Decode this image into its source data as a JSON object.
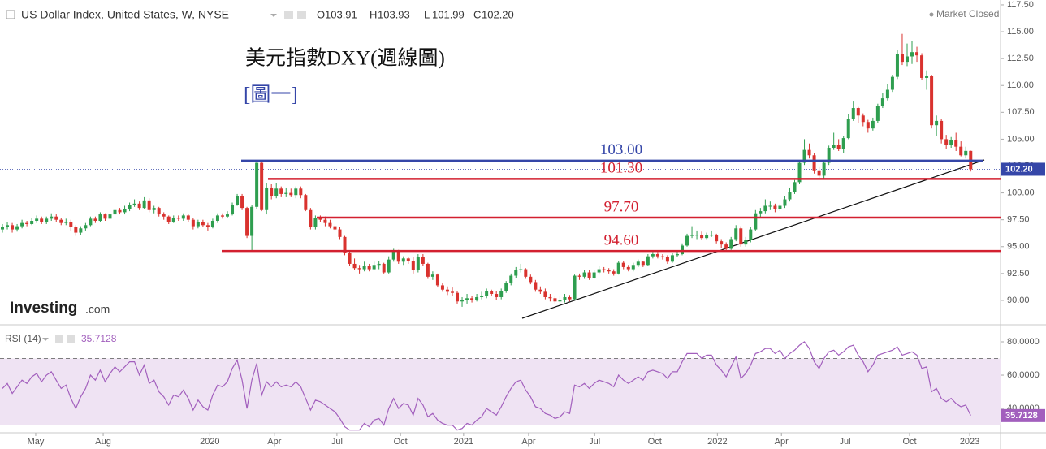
{
  "header": {
    "annotation_title": "美元指數DXY(週線圖)",
    "annotation_figure": "[圖一]",
    "logo_main": "Investing",
    "logo_suffix": ".com"
  },
  "chart_data": [
    {
      "type": "candlestick",
      "title": "US Dollar Index, United States, W, NYSE",
      "status": "Market Closed",
      "up_color": "#2e9e4f",
      "down_color": "#d9322e",
      "grid": false,
      "ohlc_legend": {
        "keys": [
          "O",
          "H",
          "L",
          "C"
        ],
        "values": [
          103.91,
          103.93,
          101.99,
          102.2
        ],
        "value_labels": [
          "103.91",
          "103.93",
          "101.99",
          "102.20"
        ]
      },
      "levels": [
        {
          "value": 103,
          "label": "103.00",
          "color": "#3546a8"
        },
        {
          "value": 101.3,
          "label": "101.30",
          "color": "#d32030"
        },
        {
          "value": 97.7,
          "label": "97.70",
          "color": "#d32030"
        },
        {
          "value": 94.6,
          "label": "94.60",
          "color": "#d32030"
        }
      ],
      "xlim": [
        -0.5,
        204.1
      ],
      "ylim": [
        87.73,
        117.95
      ],
      "yticks": [
        {
          "value": 90,
          "label": "90.00"
        },
        {
          "value": 92.5,
          "label": "92.50"
        },
        {
          "value": 95,
          "label": "95.00"
        },
        {
          "value": 97.5,
          "label": "97.50"
        },
        {
          "value": 100,
          "label": "100.00"
        },
        {
          "value": 102.5,
          "label": "102.50"
        },
        {
          "value": 105,
          "label": "105.00"
        },
        {
          "value": 107.5,
          "label": "107.50"
        },
        {
          "value": 110,
          "label": "110.00"
        },
        {
          "value": 112.5,
          "label": "112.50"
        },
        {
          "value": 115,
          "label": "115.00"
        },
        {
          "value": 117.5,
          "label": "117.50"
        }
      ],
      "open": [
        96.6,
        96.8,
        97.0,
        96.6,
        96.9,
        97.2,
        97.1,
        97.4,
        97.6,
        97.3,
        97.6,
        97.8,
        97.5,
        97.2,
        97.3,
        96.8,
        96.3,
        96.7,
        97.0,
        97.6,
        97.4,
        98.0,
        97.6,
        98.0,
        98.4,
        98.2,
        98.5,
        98.9,
        99.0,
        98.6,
        99.3,
        98.4,
        98.6,
        98.0,
        97.8,
        97.3,
        97.7,
        97.6,
        97.9,
        97.5,
        96.9,
        97.3,
        97.0,
        96.8,
        97.4,
        97.9,
        97.8,
        98.0,
        98.9,
        99.7,
        98.6,
        96.0,
        98.7,
        102.8,
        98.4,
        100.5,
        99.7,
        100.4,
        99.9,
        100.0,
        99.8,
        100.4,
        99.8,
        98.4,
        96.8,
        97.7,
        97.5,
        97.2,
        96.9,
        96.6,
        95.9,
        94.4,
        93.4,
        93.0,
        92.9,
        93.2,
        92.9,
        93.3,
        93.4,
        92.6,
        93.8,
        94.6,
        93.6,
        93.9,
        93.7,
        92.8,
        94.0,
        93.4,
        92.2,
        92.4,
        91.4,
        91.0,
        90.8,
        90.7,
        89.9,
        90.0,
        90.2,
        90.0,
        90.3,
        90.4,
        90.9,
        90.6,
        90.3,
        90.9,
        91.6,
        92.3,
        92.8,
        92.9,
        92.2,
        91.7,
        91.0,
        90.8,
        90.3,
        90.2,
        89.9,
        90.0,
        90.3,
        90.1,
        92.3,
        92.2,
        92.6,
        92.1,
        92.6,
        92.9,
        92.8,
        92.7,
        92.5,
        93.5,
        93.1,
        92.9,
        93.3,
        93.6,
        93.3,
        94.1,
        94.3,
        94.1,
        94.0,
        93.6,
        94.2,
        94.3,
        95.1,
        96.0,
        96.1,
        96.1,
        95.8,
        96.1,
        96.1,
        95.5,
        95.2,
        94.8,
        95.7,
        96.7,
        95.2,
        95.6,
        96.6,
        98.1,
        98.3,
        98.8,
        98.8,
        98.5,
        98.8,
        99.4,
        100.1,
        101.0,
        102.8,
        104.0,
        103.5,
        102.1,
        101.6,
        102.8,
        104.2,
        104.5,
        104.1,
        105.1,
        106.9,
        107.9,
        107.2,
        106.6,
        106.0,
        106.7,
        108.1,
        108.8,
        109.6,
        110.8,
        112.9,
        112.2,
        112.7,
        113.1,
        112.8,
        110.7,
        110.9,
        106.3,
        106.7,
        105.0,
        104.5,
        104.9,
        104.3,
        103.5,
        103.91
      ],
      "high": [
        97.1,
        97.3,
        97.2,
        97.1,
        97.5,
        97.4,
        97.7,
        97.9,
        97.8,
        97.8,
        98.1,
        98.0,
        97.7,
        97.6,
        97.5,
        97.0,
        96.9,
        97.2,
        97.8,
        97.8,
        98.2,
        98.1,
        98.2,
        98.6,
        98.6,
        98.8,
        99.1,
        99.4,
        99.2,
        99.6,
        99.5,
        98.8,
        98.7,
        98.2,
        97.9,
        97.9,
        97.9,
        98.1,
        98.0,
        97.7,
        97.5,
        97.5,
        97.2,
        97.6,
        98.1,
        98.1,
        98.3,
        99.1,
        99.9,
        99.9,
        98.7,
        98.9,
        103.0,
        102.9,
        100.9,
        100.8,
        100.9,
        100.6,
        100.5,
        100.4,
        100.6,
        100.6,
        99.9,
        98.6,
        97.9,
        97.9,
        97.8,
        97.5,
        97.1,
        96.8,
        96.0,
        94.6,
        93.9,
        93.3,
        93.6,
        93.4,
        93.6,
        93.7,
        93.5,
        94.1,
        94.8,
        94.7,
        94.1,
        94.0,
        94.0,
        94.3,
        94.3,
        93.5,
        92.7,
        92.5,
        91.6,
        91.3,
        91.2,
        90.9,
        90.3,
        90.6,
        90.4,
        90.6,
        90.8,
        91.1,
        91.0,
        90.9,
        91.1,
        91.8,
        92.5,
        93.1,
        93.4,
        93.0,
        92.4,
        91.9,
        91.3,
        91.1,
        90.6,
        90.4,
        90.4,
        90.6,
        90.5,
        92.4,
        92.5,
        92.8,
        92.8,
        92.8,
        93.2,
        93.1,
        93.0,
        92.9,
        93.7,
        93.7,
        93.3,
        93.5,
        93.8,
        93.7,
        94.3,
        94.5,
        94.5,
        94.3,
        94.2,
        94.4,
        94.6,
        95.3,
        96.2,
        96.9,
        96.5,
        96.4,
        96.3,
        96.5,
        96.2,
        95.7,
        95.4,
        95.9,
        97.0,
        96.9,
        95.9,
        96.8,
        98.4,
        98.6,
        99.4,
        99.2,
        99.0,
        99.0,
        99.7,
        100.5,
        101.2,
        103.0,
        105.0,
        104.6,
        103.7,
        102.4,
        103.0,
        104.4,
        105.6,
        105.0,
        105.3,
        107.3,
        108.5,
        108.0,
        107.4,
        106.8,
        107.0,
        108.3,
        109.3,
        110.1,
        111.0,
        113.3,
        114.8,
        113.9,
        114.1,
        113.6,
        113.0,
        111.4,
        111.0,
        107.2,
        106.9,
        105.4,
        105.2,
        105.6,
        104.8,
        104.3,
        103.93
      ],
      "low": [
        96.3,
        96.6,
        96.3,
        96.4,
        96.7,
        96.9,
        97.0,
        97.2,
        97.1,
        97.1,
        97.4,
        97.3,
        97.0,
        97.0,
        96.5,
        96.0,
        96.1,
        96.5,
        96.9,
        97.2,
        97.3,
        97.4,
        97.5,
        97.8,
        98.0,
        98.0,
        98.3,
        98.7,
        98.4,
        98.5,
        98.2,
        98.1,
        97.8,
        97.5,
        97.1,
        97.2,
        97.4,
        97.4,
        97.3,
        96.6,
        96.7,
        96.8,
        96.5,
        96.7,
        97.2,
        97.6,
        97.7,
        97.9,
        98.8,
        98.4,
        95.8,
        94.6,
        98.5,
        98.3,
        98.0,
        99.4,
        99.5,
        99.6,
        99.6,
        99.6,
        99.5,
        99.5,
        98.3,
        96.6,
        96.6,
        97.3,
        96.9,
        96.7,
        96.4,
        95.7,
        94.2,
        93.2,
        92.8,
        92.5,
        92.7,
        92.7,
        92.8,
        92.9,
        92.5,
        92.5,
        93.6,
        93.4,
        93.3,
        93.4,
        92.5,
        92.6,
        93.2,
        92.0,
        91.9,
        91.2,
        90.8,
        90.5,
        90.4,
        89.7,
        89.4,
        89.7,
        89.8,
        89.9,
        90.1,
        90.2,
        90.4,
        90.0,
        90.1,
        90.7,
        91.4,
        92.1,
        92.6,
        92.0,
        91.5,
        90.8,
        90.6,
        90.1,
        89.9,
        89.7,
        89.7,
        89.8,
        89.9,
        90.0,
        91.9,
        92.0,
        91.9,
        92.0,
        92.4,
        92.6,
        92.5,
        92.3,
        92.4,
        92.9,
        92.7,
        92.7,
        93.1,
        93.1,
        93.2,
        93.9,
        93.9,
        93.8,
        93.4,
        93.5,
        94.0,
        94.2,
        95.0,
        95.8,
        95.7,
        95.6,
        95.7,
        95.9,
        95.3,
        94.9,
        94.6,
        94.7,
        95.5,
        95.0,
        95.0,
        95.4,
        96.5,
        97.7,
        98.1,
        98.4,
        98.2,
        98.3,
        98.6,
        99.2,
        99.9,
        100.8,
        102.6,
        103.2,
        101.8,
        101.4,
        101.3,
        102.6,
        104.0,
        103.9,
        103.7,
        105.0,
        106.7,
        106.5,
        106.2,
        105.6,
        105.8,
        106.5,
        107.9,
        108.6,
        109.4,
        110.6,
        111.9,
        111.8,
        112.0,
        112.2,
        110.5,
        109.6,
        106.0,
        105.3,
        104.6,
        104.1,
        104.2,
        103.9,
        103.4,
        103.2,
        101.99
      ],
      "close": [
        96.8,
        97.0,
        96.6,
        96.9,
        97.2,
        97.1,
        97.4,
        97.6,
        97.3,
        97.6,
        97.8,
        97.5,
        97.2,
        97.3,
        96.8,
        96.3,
        96.7,
        97.0,
        97.6,
        97.4,
        98.0,
        97.6,
        98.0,
        98.4,
        98.2,
        98.5,
        98.9,
        99.0,
        98.6,
        99.3,
        98.4,
        98.6,
        98.0,
        97.8,
        97.3,
        97.7,
        97.6,
        97.9,
        97.5,
        96.9,
        97.3,
        97.0,
        96.8,
        97.4,
        97.9,
        97.8,
        98.0,
        98.9,
        99.7,
        98.6,
        96.0,
        98.7,
        102.8,
        98.4,
        100.5,
        99.7,
        100.4,
        99.9,
        100.0,
        99.8,
        100.4,
        99.8,
        98.4,
        96.8,
        97.7,
        97.5,
        97.2,
        96.9,
        96.6,
        95.9,
        94.4,
        93.4,
        93.0,
        92.9,
        93.2,
        92.9,
        93.3,
        93.4,
        92.6,
        93.8,
        94.6,
        93.6,
        93.9,
        93.7,
        92.8,
        94.0,
        93.4,
        92.2,
        92.4,
        91.4,
        91.0,
        90.8,
        90.7,
        89.9,
        90.0,
        90.2,
        90.0,
        90.3,
        90.4,
        90.9,
        90.6,
        90.3,
        90.9,
        91.6,
        92.3,
        92.8,
        92.9,
        92.2,
        91.7,
        91.0,
        90.8,
        90.3,
        90.2,
        89.9,
        90.0,
        90.3,
        90.1,
        92.3,
        92.2,
        92.6,
        92.1,
        92.6,
        92.9,
        92.8,
        92.7,
        92.5,
        93.5,
        93.1,
        92.9,
        93.3,
        93.6,
        93.3,
        94.1,
        94.3,
        94.1,
        94.0,
        93.6,
        94.2,
        94.3,
        95.1,
        96.0,
        96.1,
        96.1,
        95.8,
        96.1,
        96.1,
        95.5,
        95.2,
        94.8,
        95.7,
        96.7,
        95.2,
        95.6,
        96.6,
        98.1,
        98.3,
        98.8,
        98.8,
        98.5,
        98.8,
        99.4,
        100.1,
        101.0,
        102.8,
        104.0,
        103.5,
        102.1,
        101.6,
        102.8,
        104.2,
        104.5,
        104.1,
        105.1,
        106.9,
        107.9,
        107.2,
        106.6,
        106.0,
        106.7,
        108.1,
        108.8,
        109.6,
        110.8,
        112.9,
        112.2,
        112.7,
        113.1,
        112.8,
        110.7,
        110.9,
        106.3,
        106.7,
        105.0,
        104.5,
        104.9,
        104.3,
        103.5,
        103.91,
        102.2
      ]
    },
    {
      "type": "line",
      "title": "RSI (14)",
      "color": "#a25fbd",
      "band_color": "#efe3f3",
      "xlim": [
        -0.5,
        204.1
      ],
      "ylim": [
        25.4,
        87.8
      ],
      "levels": [
        30,
        70
      ],
      "yticks": [
        {
          "value": 40,
          "label": "40.0000"
        },
        {
          "value": 60,
          "label": "60.0000"
        },
        {
          "value": 80,
          "label": "80.0000"
        }
      ],
      "xticks": [
        {
          "value": 6.8,
          "label": "May"
        },
        {
          "value": 20.6,
          "label": "Aug"
        },
        {
          "value": 42.4,
          "label": "2020"
        },
        {
          "value": 55.6,
          "label": "Apr"
        },
        {
          "value": 68.4,
          "label": "Jul"
        },
        {
          "value": 81.4,
          "label": "Oct"
        },
        {
          "value": 94.3,
          "label": "2021"
        },
        {
          "value": 107.6,
          "label": "Apr"
        },
        {
          "value": 121.1,
          "label": "Jul"
        },
        {
          "value": 133.4,
          "label": "Oct"
        },
        {
          "value": 146.2,
          "label": "2022"
        },
        {
          "value": 159.3,
          "label": "Apr"
        },
        {
          "value": 172.3,
          "label": "Jul"
        },
        {
          "value": 185.5,
          "label": "Oct"
        },
        {
          "value": 197.8,
          "label": "2023"
        }
      ],
      "values": [
        52,
        55,
        49,
        53,
        57,
        55,
        59,
        61,
        56,
        60,
        62,
        57,
        52,
        54,
        46,
        40,
        47,
        52,
        60,
        57,
        63,
        56,
        61,
        65,
        62,
        65,
        68,
        68,
        60,
        66,
        55,
        57,
        50,
        47,
        42,
        48,
        47,
        51,
        46,
        39,
        45,
        41,
        39,
        48,
        54,
        53,
        56,
        64,
        69,
        57,
        40,
        57,
        67,
        48,
        56,
        53,
        56,
        53,
        54,
        53,
        56,
        53,
        46,
        39,
        45,
        44,
        42,
        40,
        38,
        34,
        29,
        27,
        27,
        27,
        31,
        29,
        33,
        34,
        30,
        40,
        46,
        40,
        43,
        42,
        36,
        46,
        42,
        35,
        37,
        33,
        31,
        30,
        30,
        27,
        28,
        31,
        30,
        33,
        35,
        40,
        38,
        36,
        41,
        47,
        52,
        56,
        57,
        51,
        47,
        41,
        40,
        37,
        36,
        34,
        35,
        38,
        37,
        54,
        53,
        55,
        52,
        55,
        57,
        56,
        55,
        53,
        60,
        57,
        55,
        57,
        59,
        57,
        62,
        63,
        62,
        61,
        58,
        62,
        62,
        68,
        73,
        73,
        73,
        70,
        72,
        72,
        66,
        63,
        59,
        65,
        71,
        58,
        61,
        66,
        73,
        74,
        76,
        76,
        73,
        75,
        70,
        73,
        75,
        78,
        80,
        76,
        68,
        64,
        70,
        74,
        75,
        72,
        74,
        77,
        78,
        72,
        68,
        62,
        66,
        72,
        73,
        74,
        75,
        77,
        72,
        73,
        74,
        72,
        64,
        65,
        50,
        52,
        46,
        44,
        46,
        43,
        41,
        42,
        35.7128
      ]
    }
  ]
}
